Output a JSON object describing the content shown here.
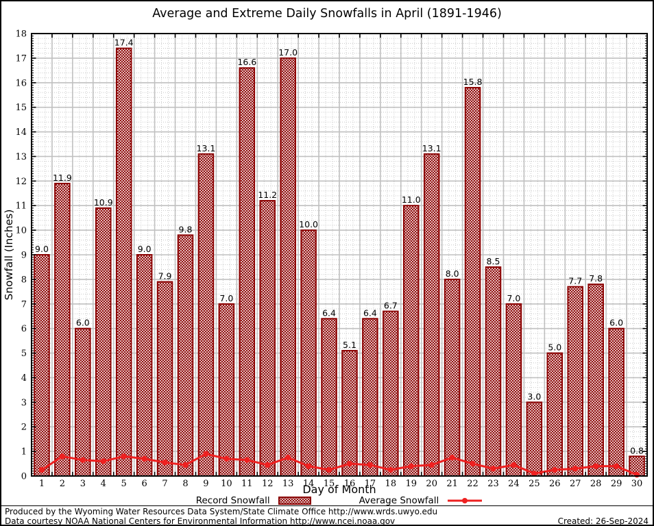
{
  "title": "Average and Extreme Daily Snowfalls in April (1891-1946)",
  "ylabel": "Snowfall (Inches)",
  "xlabel": "Day of Month",
  "legend": {
    "record": "Record Snowfall",
    "average": "Average Snowfall"
  },
  "footer": {
    "line1": "Produced by the Wyoming Water Resources Data System/State Climate Office http://www.wrds.uwyo.edu",
    "line2": "Data courtesy NOAA National Centers for Environmental Information http://www.ncei.noaa.gov",
    "created": "Created: 26-Sep-2024"
  },
  "colors": {
    "bar_border": "#8b0000",
    "bar_hatch": "#8b0000",
    "avg_line": "#ee2020",
    "grid_major": "#c0c0c0",
    "grid_minor": "#c8c8c8",
    "frame": "#000000"
  },
  "chart_data": {
    "type": "bar",
    "title": "Average and Extreme Daily Snowfalls in April (1891-1946)",
    "xlabel": "Day of Month",
    "ylabel": "Snowfall (Inches)",
    "ylim": [
      0,
      18
    ],
    "ytick_step": 1,
    "grid": true,
    "legend_position": "bottom",
    "categories": [
      1,
      2,
      3,
      4,
      5,
      6,
      7,
      8,
      9,
      10,
      11,
      12,
      13,
      14,
      15,
      16,
      17,
      18,
      19,
      20,
      21,
      22,
      23,
      24,
      25,
      26,
      27,
      28,
      29,
      30
    ],
    "series": [
      {
        "name": "Record Snowfall",
        "type": "bar",
        "values": [
          9.0,
          11.9,
          6.0,
          10.9,
          17.4,
          9.0,
          7.9,
          9.8,
          13.1,
          7.0,
          16.6,
          11.2,
          17.0,
          10.0,
          6.4,
          5.1,
          6.4,
          6.7,
          11.0,
          13.1,
          8.0,
          15.8,
          8.5,
          7.0,
          3.0,
          5.0,
          7.7,
          7.8,
          6.0,
          0.8
        ]
      },
      {
        "name": "Average Snowfall",
        "type": "line",
        "values": [
          0.25,
          0.8,
          0.65,
          0.6,
          0.8,
          0.7,
          0.55,
          0.45,
          0.9,
          0.7,
          0.65,
          0.45,
          0.75,
          0.4,
          0.25,
          0.5,
          0.45,
          0.25,
          0.4,
          0.45,
          0.75,
          0.5,
          0.3,
          0.45,
          0.1,
          0.25,
          0.3,
          0.4,
          0.4,
          0.05
        ]
      }
    ]
  }
}
